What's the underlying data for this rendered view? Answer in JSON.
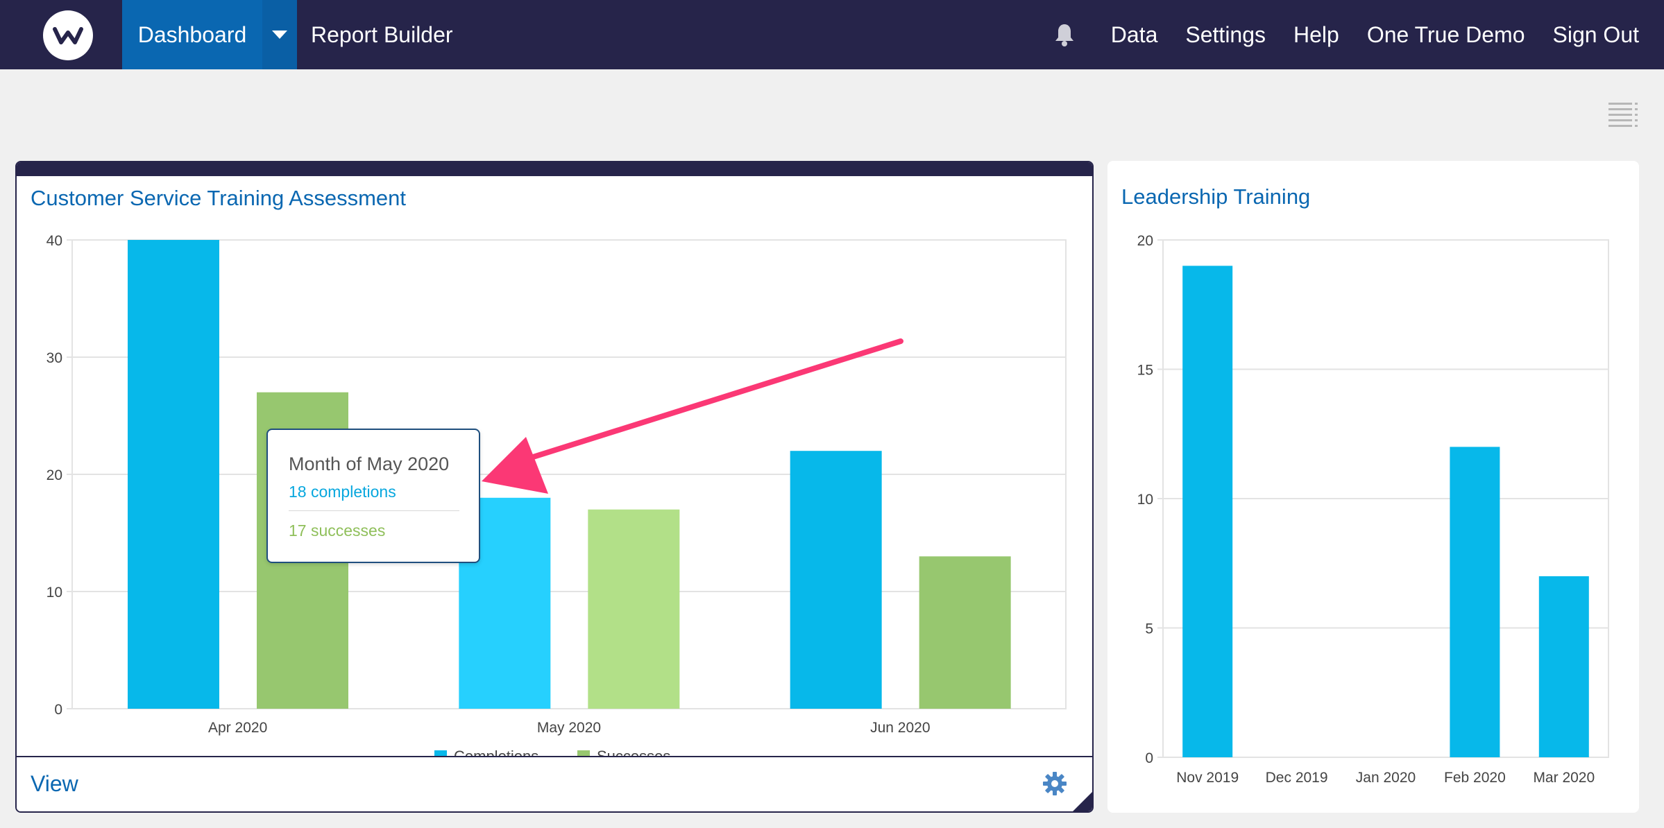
{
  "nav": {
    "logo_letter": "w",
    "dashboard": "Dashboard",
    "report_builder": "Report Builder",
    "links": [
      "Data",
      "Settings",
      "Help",
      "One True Demo",
      "Sign Out"
    ]
  },
  "colors": {
    "nav_bg": "#26244a",
    "nav_active": "#0a67b1",
    "completions": "#07b8ea",
    "completions_hover": "#26d0fe",
    "successes": "#97c76f",
    "successes_hover": "#b2e088",
    "annotation_arrow": "#fb3875"
  },
  "cards": {
    "left": {
      "title": "Customer Service Training Assessment",
      "footer_link": "View"
    },
    "right": {
      "title": "Leadership Training"
    }
  },
  "tooltip": {
    "title": "Month of May 2020",
    "line1": "18 completions",
    "line2": "17 successes"
  },
  "chart_data": [
    {
      "type": "bar",
      "title": "Customer Service Training Assessment",
      "categories": [
        "Apr 2020",
        "May 2020",
        "Jun 2020"
      ],
      "series": [
        {
          "name": "Completions",
          "values": [
            40,
            18,
            22
          ]
        },
        {
          "name": "Successes",
          "values": [
            27,
            17,
            13
          ]
        }
      ],
      "ylim": [
        0,
        40
      ],
      "yticks": [
        0,
        10,
        20,
        30,
        40
      ],
      "grid": true,
      "legend": "bottom"
    },
    {
      "type": "bar",
      "title": "Leadership Training",
      "categories": [
        "Nov 2019",
        "Dec 2019",
        "Jan 2020",
        "Feb 2020",
        "Mar 2020"
      ],
      "series": [
        {
          "name": "",
          "values": [
            19,
            0,
            0,
            12,
            7
          ]
        }
      ],
      "ylim": [
        0,
        20
      ],
      "yticks": [
        0,
        5,
        10,
        15,
        20
      ],
      "grid": true,
      "legend": "none"
    }
  ]
}
